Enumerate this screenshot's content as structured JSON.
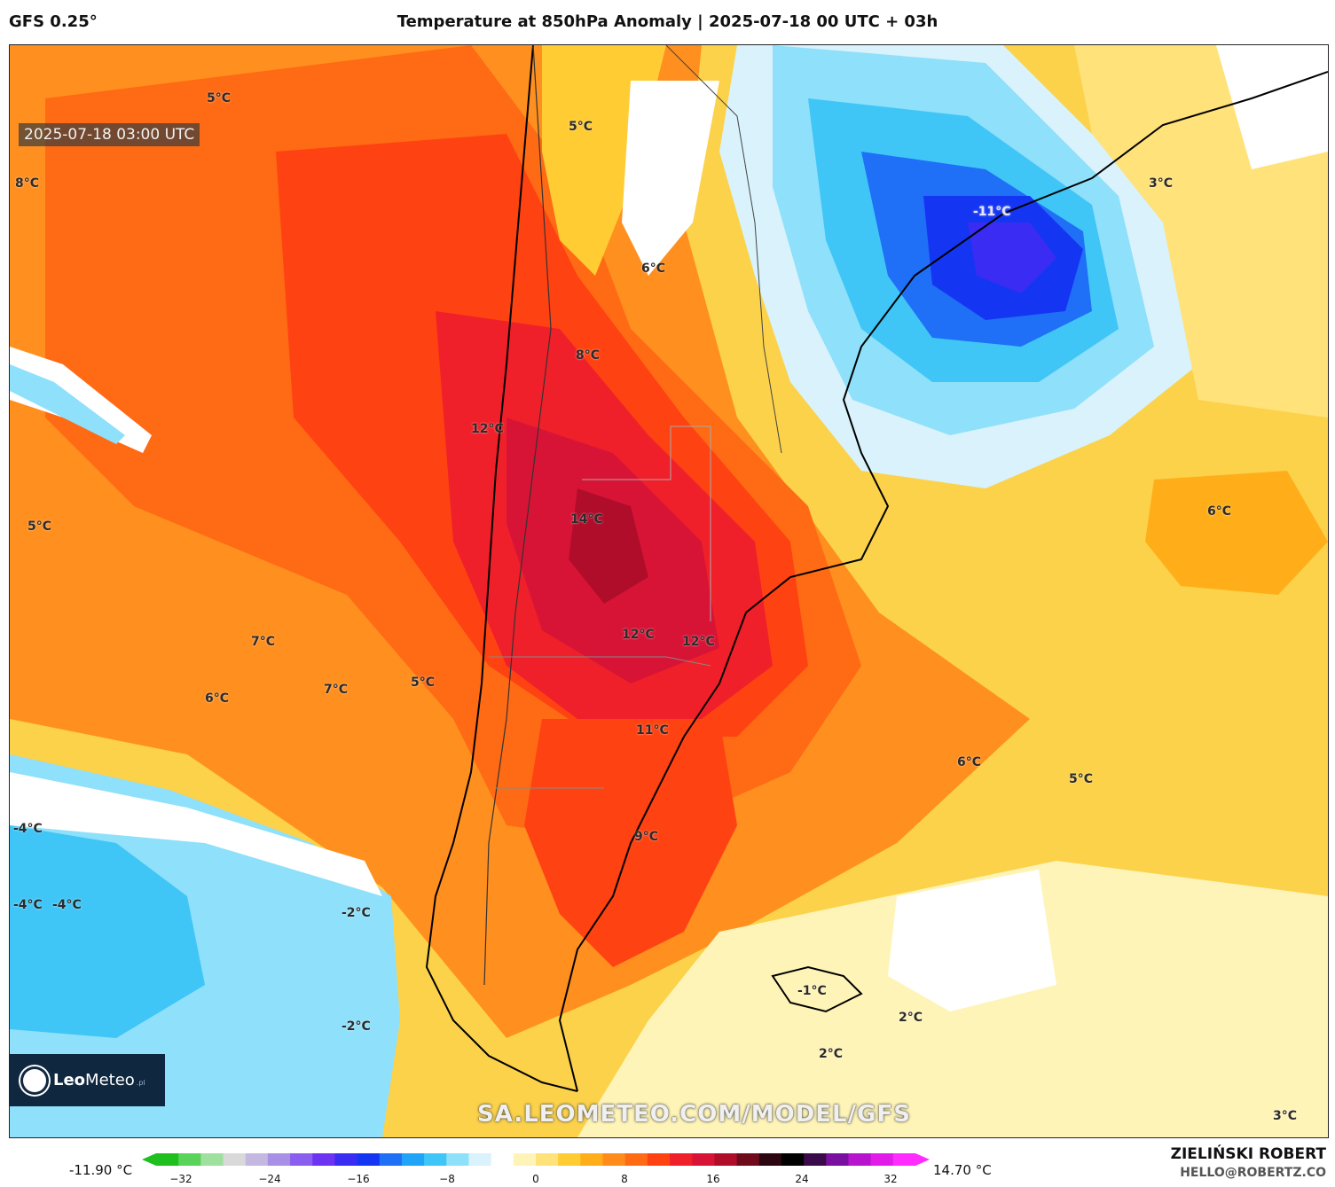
{
  "header": {
    "model": "GFS 0.25°",
    "title": "Temperature at 850hPa Anomaly | 2025-07-18 00 UTC + 03h"
  },
  "map": {
    "valid_time": "2025-07-18 03:00 UTC",
    "watermark": "SA.LEOMETEO.COM/MODEL/GFS",
    "labels": [
      {
        "text": "5°C"
      },
      {
        "text": "8°C"
      },
      {
        "text": "5°C"
      },
      {
        "text": "6°C"
      },
      {
        "text": "8°C"
      },
      {
        "text": "12°C"
      },
      {
        "text": "14°C"
      },
      {
        "text": "5°C"
      },
      {
        "text": "12°C"
      },
      {
        "text": "12°C"
      },
      {
        "text": "7°C"
      },
      {
        "text": "7°C"
      },
      {
        "text": "6°C"
      },
      {
        "text": "5°C"
      },
      {
        "text": "11°C"
      },
      {
        "text": "6°C"
      },
      {
        "text": "5°C"
      },
      {
        "text": "9°C"
      },
      {
        "text": "-4°C"
      },
      {
        "text": "-4°C"
      },
      {
        "text": "-4°C"
      },
      {
        "text": "-2°C"
      },
      {
        "text": "-2°C"
      },
      {
        "text": "-1°C"
      },
      {
        "text": "2°C"
      },
      {
        "text": "2°C"
      },
      {
        "text": "3°C"
      },
      {
        "text": "3°C"
      },
      {
        "text": "6°C"
      },
      {
        "text": "-11°C"
      }
    ]
  },
  "logo": {
    "brand_bold": "Leo",
    "brand_rest": "Meteo",
    "suffix": ".pl"
  },
  "colorbar": {
    "min_label": "-11.90 °C",
    "max_label": "14.70 °C",
    "ticks": [
      "−32",
      "−24",
      "−16",
      "−8",
      "0",
      "8",
      "16",
      "24",
      "32"
    ],
    "colors": [
      "#1fbf1f",
      "#59d35a",
      "#9fe09f",
      "#d9d9d9",
      "#c4b8e0",
      "#a890e6",
      "#8a5ff0",
      "#6d33f3",
      "#3a2cf2",
      "#1436f2",
      "#1f6ff7",
      "#1fa4f7",
      "#3fc6f7",
      "#8fe0fa",
      "#d9f2fb",
      "#ffffff",
      "#fff4b8",
      "#ffe27a",
      "#ffcc33",
      "#ffae1a",
      "#ff8c1a",
      "#ff6a14",
      "#ff4212",
      "#f0202a",
      "#d81436",
      "#b00d2b",
      "#6e0a1a",
      "#2b0610",
      "#000000",
      "#3a0a4a",
      "#7a10a0",
      "#b614cf",
      "#e21ce8",
      "#ff2cff"
    ],
    "unit": "°C"
  },
  "credits": {
    "author": "ZIELIŃSKI ROBERT",
    "email": "HELLO@ROBERTZ.CO"
  }
}
